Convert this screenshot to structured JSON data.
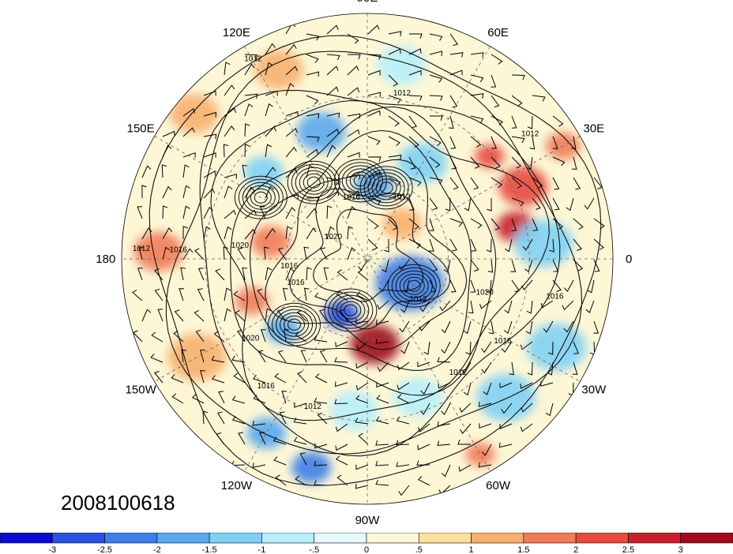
{
  "map": {
    "longitude_labels": [
      {
        "text": "90E",
        "deg": 90
      },
      {
        "text": "60E",
        "deg": 60
      },
      {
        "text": "120E",
        "deg": 120
      },
      {
        "text": "30E",
        "deg": 30
      },
      {
        "text": "150E",
        "deg": 150
      },
      {
        "text": "0",
        "deg": 0
      },
      {
        "text": "180",
        "deg": 180
      },
      {
        "text": "30W",
        "deg": -30
      },
      {
        "text": "150W",
        "deg": -150
      },
      {
        "text": "60W",
        "deg": -60
      },
      {
        "text": "120W",
        "deg": -120
      },
      {
        "text": "90W",
        "deg": -90
      }
    ],
    "contour_labels": [
      {
        "text": "1012",
        "lon": 120,
        "r": 0.93
      },
      {
        "text": "1012",
        "lon": 78,
        "r": 0.68
      },
      {
        "text": "1012",
        "lon": 37,
        "r": 0.83
      },
      {
        "text": "1016",
        "lon": 105,
        "r": 0.25
      },
      {
        "text": "1012",
        "lon": 60,
        "r": 0.28
      },
      {
        "text": "1012",
        "lon": 178,
        "r": 0.92
      },
      {
        "text": "1016",
        "lon": 178,
        "r": 0.77
      },
      {
        "text": "1020",
        "lon": 175,
        "r": 0.52
      },
      {
        "text": "1020",
        "lon": 150,
        "r": 0.16
      },
      {
        "text": "1016",
        "lon": -173,
        "r": 0.32
      },
      {
        "text": "1016",
        "lon": -160,
        "r": 0.31
      },
      {
        "text": "1012",
        "lon": -40,
        "r": 0.27
      },
      {
        "text": "1020",
        "lon": -17,
        "r": 0.5
      },
      {
        "text": "1016",
        "lon": -12,
        "r": 0.78
      },
      {
        "text": "1016",
        "lon": -32,
        "r": 0.65
      },
      {
        "text": "1012",
        "lon": -52,
        "r": 0.6
      },
      {
        "text": "1020",
        "lon": -145,
        "r": 0.58
      },
      {
        "text": "1016",
        "lon": -128,
        "r": 0.67
      },
      {
        "text": "1012",
        "lon": -110,
        "r": 0.65
      }
    ],
    "anomaly_blobs": [
      {
        "lon": 25,
        "r": 0.7,
        "val": 2.0,
        "size": 0.1
      },
      {
        "lon": 12,
        "r": 0.62,
        "val": 2.5,
        "size": 0.08
      },
      {
        "lon": 40,
        "r": 0.65,
        "val": 2.0,
        "size": 0.06
      },
      {
        "lon": 30,
        "r": 0.92,
        "val": 1.5,
        "size": 0.07
      },
      {
        "lon": 5,
        "r": 0.72,
        "val": -1.5,
        "size": 0.12
      },
      {
        "lon": -25,
        "r": 0.85,
        "val": -1.5,
        "size": 0.12
      },
      {
        "lon": -45,
        "r": 0.8,
        "val": -1.5,
        "size": 0.12
      },
      {
        "lon": -60,
        "r": 0.92,
        "val": 1.5,
        "size": 0.06
      },
      {
        "lon": -85,
        "r": 0.35,
        "val": 3.0,
        "size": 0.1
      },
      {
        "lon": -115,
        "r": 0.25,
        "val": -3.0,
        "size": 0.07
      },
      {
        "lon": -30,
        "r": 0.2,
        "val": -2.5,
        "size": 0.14
      },
      {
        "lon": 85,
        "r": 0.3,
        "val": -2.0,
        "size": 0.08
      },
      {
        "lon": 110,
        "r": 0.55,
        "val": -2.0,
        "size": 0.1
      },
      {
        "lon": 140,
        "r": 0.55,
        "val": -1.5,
        "size": 0.08
      },
      {
        "lon": 170,
        "r": 0.4,
        "val": 1.5,
        "size": 0.08
      },
      {
        "lon": 178,
        "r": 0.85,
        "val": 1.5,
        "size": 0.1
      },
      {
        "lon": -160,
        "r": 0.5,
        "val": 1.5,
        "size": 0.07
      },
      {
        "lon": -140,
        "r": 0.45,
        "val": -2.0,
        "size": 0.07
      },
      {
        "lon": -120,
        "r": 0.82,
        "val": -2.0,
        "size": 0.08
      },
      {
        "lon": -105,
        "r": 0.88,
        "val": -2.5,
        "size": 0.08
      },
      {
        "lon": 140,
        "r": 0.92,
        "val": 1.0,
        "size": 0.1
      },
      {
        "lon": 115,
        "r": 0.85,
        "val": 1.0,
        "size": 0.1
      },
      {
        "lon": -150,
        "r": 0.8,
        "val": 1.0,
        "size": 0.12
      },
      {
        "lon": 60,
        "r": 0.45,
        "val": -1.5,
        "size": 0.1
      },
      {
        "lon": 45,
        "r": 0.2,
        "val": 1.0,
        "size": 0.08
      },
      {
        "lon": -70,
        "r": 0.6,
        "val": -1.0,
        "size": 0.1
      },
      {
        "lon": -95,
        "r": 0.62,
        "val": -1.0,
        "size": 0.1
      },
      {
        "lon": 80,
        "r": 0.8,
        "val": -1.0,
        "size": 0.1
      }
    ],
    "lows": [
      {
        "lon": -30,
        "r": 0.22
      },
      {
        "lon": -108,
        "r": 0.22
      },
      {
        "lon": 75,
        "r": 0.3
      },
      {
        "lon": -138,
        "r": 0.4
      },
      {
        "lon": 95,
        "r": 0.32
      },
      {
        "lon": 150,
        "r": 0.5
      },
      {
        "lon": 125,
        "r": 0.38
      }
    ]
  },
  "date_label": "2008100618",
  "colorbar": {
    "colors": [
      "#0a0ad2",
      "#2a52e0",
      "#3f80e8",
      "#5aa8ee",
      "#7fd0f5",
      "#b8eefb",
      "#e6f9fc",
      "#fdf7d6",
      "#fbe0a0",
      "#f7b070",
      "#f07c5a",
      "#e84a40",
      "#c8202c",
      "#a00a1e"
    ],
    "tick_labels": [
      "-3",
      "-2.5",
      "-2",
      "-1.5",
      "-1",
      "-.5",
      "0",
      ".5",
      "1",
      "1.5",
      "2",
      "2.5",
      "3"
    ]
  }
}
